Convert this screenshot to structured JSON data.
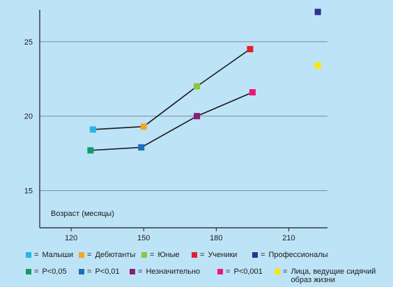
{
  "colors": {
    "background": "#bde3f7",
    "line": "#1a1a1a",
    "grid": "#7f8c93"
  },
  "chart_data": {
    "type": "line",
    "xlabel": "Возраст (месяцы)",
    "ylabel": "",
    "xlim": [
      107,
      226
    ],
    "ylim": [
      12.5,
      27.8
    ],
    "xticks": [
      120,
      150,
      180,
      210
    ],
    "yticks": [
      15,
      20,
      25
    ],
    "grid": "horizontal",
    "series": [
      {
        "line_color": "#1a1a1a",
        "points": [
          {
            "x": 129,
            "y": 19.1,
            "color": "#29b5e8"
          },
          {
            "x": 150,
            "y": 19.3,
            "color": "#f5a623"
          },
          {
            "x": 172,
            "y": 22.0,
            "color": "#8cc63f"
          },
          {
            "x": 194,
            "y": 24.5,
            "color": "#e2202a"
          }
        ]
      },
      {
        "line_color": "#1a1a1a",
        "points": [
          {
            "x": 128,
            "y": 17.7,
            "color": "#159a69"
          },
          {
            "x": 149,
            "y": 17.9,
            "color": "#1f6db8"
          },
          {
            "x": 172,
            "y": 20.0,
            "color": "#8a1e78"
          },
          {
            "x": 195,
            "y": 21.6,
            "color": "#e8197a"
          }
        ]
      }
    ],
    "standalone_points": [
      {
        "x": 222,
        "y": 27.0,
        "color": "#2e3192"
      },
      {
        "x": 222,
        "y": 23.4,
        "color": "#ffe600"
      }
    ]
  },
  "legend": {
    "row1": [
      {
        "label": "Малыши",
        "eq": "=",
        "color": "#29b5e8"
      },
      {
        "label": "Дебютанты",
        "eq": "=",
        "color": "#f5a623"
      },
      {
        "label": "Юные",
        "eq": "=",
        "color": "#8cc63f"
      },
      {
        "label": "Ученики",
        "eq": "=",
        "color": "#e2202a"
      },
      {
        "label": "Профессионалы",
        "eq": "=",
        "color": "#2e3192"
      }
    ],
    "row2": [
      {
        "label": "P<0,05",
        "eq": "=",
        "color": "#159a69"
      },
      {
        "label": "P<0,01",
        "eq": "=",
        "color": "#1f6db8"
      },
      {
        "label": "Незначительно",
        "eq": "=",
        "color": "#8a1e78"
      },
      {
        "label": "P<0,001",
        "eq": "=",
        "color": "#e8197a"
      },
      {
        "label": "Лица, ведущие сидячий образ жизни",
        "eq": "=",
        "color": "#ffe600"
      }
    ]
  }
}
